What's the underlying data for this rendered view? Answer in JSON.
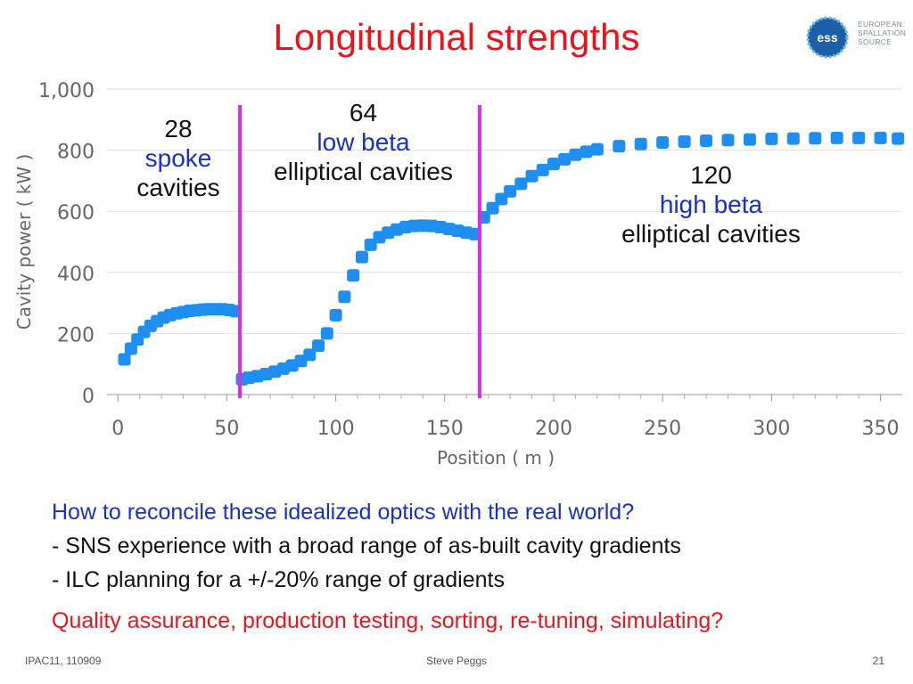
{
  "slide": {
    "title": "Longitudinal strengths",
    "logo": {
      "text_lines": [
        "EUROPEAN",
        "SPALLATION",
        "SOURCE"
      ],
      "mark": "ess"
    },
    "annotations": {
      "spoke": {
        "count": "28",
        "type": "spoke",
        "suffix": "cavities"
      },
      "low_beta": {
        "count": "64",
        "type": "low beta",
        "suffix": "elliptical cavities"
      },
      "high_beta": {
        "count": "120",
        "type": "high beta",
        "suffix": "elliptical cavities"
      }
    },
    "question": "How to reconcile these idealized optics with the real world?",
    "bullets": [
      "- SNS experience with a broad range of as-built cavity gradients",
      "- ILC planning for a +/-20% range of gradients"
    ],
    "qa_line": "Quality assurance, production testing, sorting, re-tuning, simulating?",
    "footer": {
      "left": "IPAC11, 110909",
      "center": "Steve Peggs",
      "right": "21"
    }
  },
  "colors": {
    "title": "#e8141b",
    "series": "#1e8ef0",
    "divider": "#d42ee0",
    "blue_text": "#1a2fc8"
  },
  "chart_data": {
    "type": "scatter",
    "xlabel": "Position ( m )",
    "ylabel": "Cavity power ( kW )",
    "xlim": [
      -5,
      360
    ],
    "ylim": [
      0,
      1000
    ],
    "xticks": [
      0,
      50,
      100,
      150,
      200,
      250,
      300,
      350
    ],
    "yticks": [
      0,
      200,
      400,
      600,
      800,
      1000
    ],
    "xtick_labels": [
      "0",
      "50",
      "100",
      "150",
      "200",
      "250",
      "300",
      "350"
    ],
    "ytick_labels": [
      "0",
      "200",
      "400",
      "600",
      "800",
      "1,000"
    ],
    "grid": "horizontal",
    "dividers_x": [
      56,
      166
    ],
    "series": [
      {
        "x": [
          3,
          6,
          9,
          12,
          15,
          18,
          21,
          24,
          27,
          30,
          33,
          36,
          39,
          42,
          45,
          48,
          51,
          54,
          57,
          60,
          64,
          68,
          72,
          76,
          80,
          84,
          88,
          92,
          96,
          100,
          104,
          108,
          112,
          116,
          120,
          124,
          128,
          132,
          136,
          140,
          144,
          148,
          152,
          156,
          160,
          164,
          168,
          172,
          176,
          180,
          185,
          190,
          195,
          200,
          205,
          210,
          215,
          220,
          230,
          240,
          250,
          260,
          270,
          280,
          290,
          300,
          310,
          320,
          330,
          340,
          350,
          358
        ],
        "y": [
          115,
          150,
          180,
          205,
          225,
          240,
          252,
          260,
          266,
          270,
          274,
          276,
          278,
          279,
          279,
          279,
          277,
          273,
          50,
          55,
          60,
          67,
          75,
          85,
          95,
          110,
          130,
          160,
          200,
          260,
          320,
          390,
          450,
          490,
          515,
          530,
          540,
          548,
          552,
          553,
          552,
          548,
          542,
          536,
          530,
          525,
          580,
          610,
          640,
          665,
          690,
          715,
          735,
          755,
          770,
          785,
          795,
          803,
          813,
          820,
          825,
          828,
          831,
          833,
          835,
          837,
          838,
          839,
          840,
          840,
          840,
          838
        ]
      }
    ]
  }
}
